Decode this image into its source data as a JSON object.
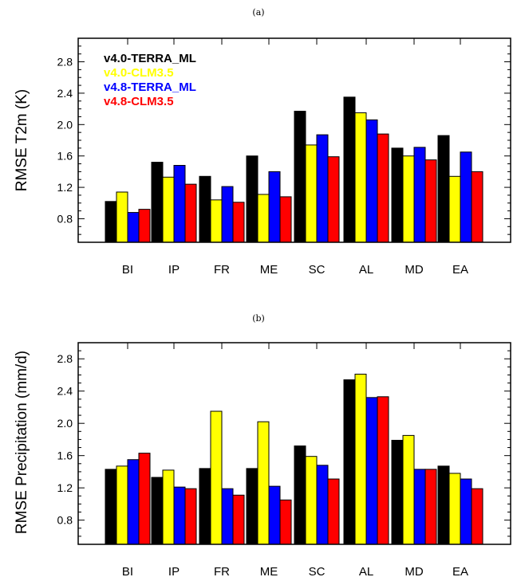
{
  "chart_data": [
    {
      "type": "bar",
      "title": "(a)",
      "ylabel": "RMSE T2m (K)",
      "xlabel": "",
      "ylim": [
        0.5,
        3.1
      ],
      "yticks": [
        "0.8",
        "1.2",
        "1.6",
        "2.0",
        "2.4",
        "2.8"
      ],
      "categories": [
        "BI",
        "IP",
        "FR",
        "ME",
        "SC",
        "AL",
        "MD",
        "EA"
      ],
      "legend": "top-left",
      "series": [
        {
          "name": "v4.0-TERRA_ML",
          "color": "#000000",
          "values": [
            1.02,
            1.52,
            1.34,
            1.6,
            2.17,
            2.35,
            1.7,
            1.86
          ]
        },
        {
          "name": "v4.0-CLM3.5",
          "color": "#ffff00",
          "values": [
            1.14,
            1.33,
            1.04,
            1.11,
            1.74,
            2.15,
            1.6,
            1.34
          ]
        },
        {
          "name": "v4.8-TERRA_ML",
          "color": "#0000ff",
          "values": [
            0.88,
            1.48,
            1.21,
            1.4,
            1.87,
            2.06,
            1.71,
            1.65
          ]
        },
        {
          "name": "v4.8-CLM3.5",
          "color": "#ff0000",
          "values": [
            0.92,
            1.24,
            1.01,
            1.08,
            1.59,
            1.88,
            1.55,
            1.4
          ]
        }
      ]
    },
    {
      "type": "bar",
      "title": "(b)",
      "ylabel": "RMSE Precipitation (mm/d)",
      "xlabel": "",
      "ylim": [
        0.5,
        3.0
      ],
      "yticks": [
        "0.8",
        "1.2",
        "1.6",
        "2.0",
        "2.4",
        "2.8"
      ],
      "categories": [
        "BI",
        "IP",
        "FR",
        "ME",
        "SC",
        "AL",
        "MD",
        "EA"
      ],
      "series": [
        {
          "name": "v4.0-TERRA_ML",
          "color": "#000000",
          "values": [
            1.43,
            1.33,
            1.44,
            1.44,
            1.72,
            2.54,
            1.79,
            1.47
          ]
        },
        {
          "name": "v4.0-CLM3.5",
          "color": "#ffff00",
          "values": [
            1.47,
            1.42,
            2.15,
            2.02,
            1.59,
            2.61,
            1.85,
            1.38
          ]
        },
        {
          "name": "v4.8-TERRA_ML",
          "color": "#0000ff",
          "values": [
            1.55,
            1.21,
            1.19,
            1.22,
            1.48,
            2.32,
            1.43,
            1.31
          ]
        },
        {
          "name": "v4.8-CLM3.5",
          "color": "#ff0000",
          "values": [
            1.63,
            1.19,
            1.11,
            1.05,
            1.31,
            2.33,
            1.43,
            1.19
          ]
        }
      ]
    }
  ]
}
